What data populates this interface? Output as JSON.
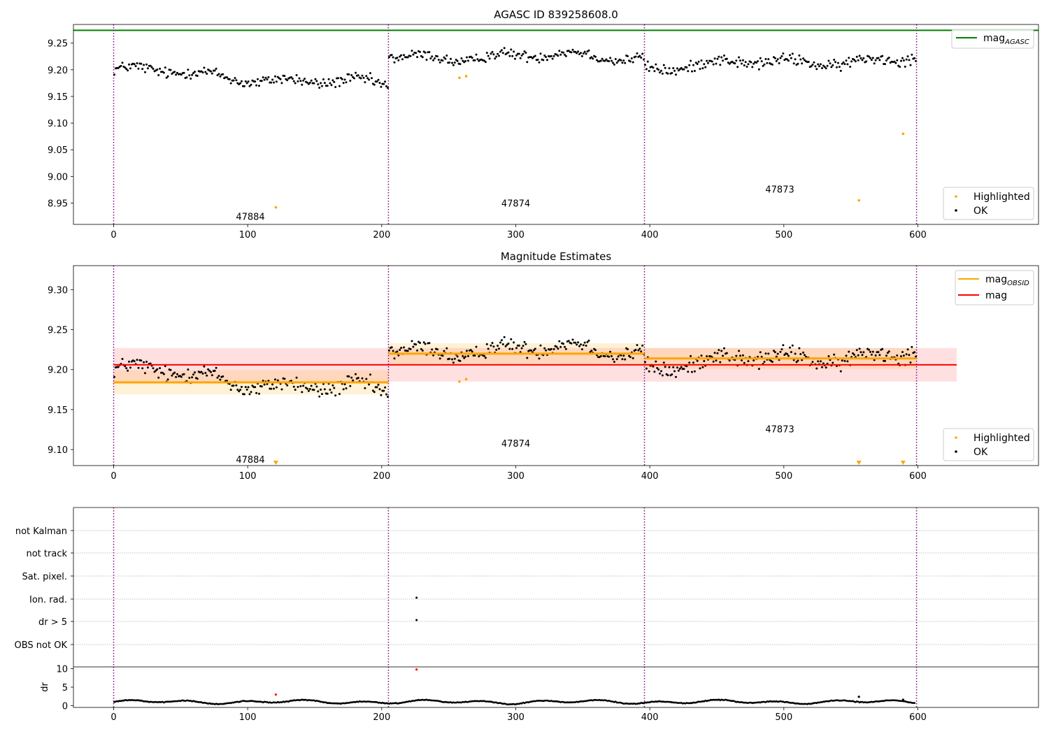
{
  "chart_data": [
    {
      "type": "scatter",
      "title": "AGASC ID 839258608.0",
      "xlim": [
        -30,
        690
      ],
      "ylim": [
        8.91,
        9.285
      ],
      "xticks": [
        0,
        100,
        200,
        300,
        400,
        500,
        600
      ],
      "yticks": [
        8.95,
        9.0,
        9.05,
        9.1,
        9.15,
        9.2,
        9.25
      ],
      "ytick_labels": [
        "8.95",
        "9.00",
        "9.05",
        "9.10",
        "9.15",
        "9.20",
        "9.25"
      ],
      "obsid_boundaries": [
        0,
        205,
        396,
        599
      ],
      "obsid_labels": [
        {
          "text": "47884",
          "x": 102,
          "y": 8.925
        },
        {
          "text": "47874",
          "x": 300,
          "y": 8.95
        },
        {
          "text": "47873",
          "x": 497,
          "y": 8.976
        }
      ],
      "mag_agasc": 9.274,
      "segments": [
        {
          "x0": 0,
          "x1": 205,
          "y0": 9.2,
          "y1": 9.17,
          "amp": 0.024
        },
        {
          "x0": 205,
          "x1": 396,
          "y0": 9.225,
          "y1": 9.225,
          "amp": 0.022
        },
        {
          "x0": 396,
          "x1": 599,
          "y0": 9.205,
          "y1": 9.222,
          "amp": 0.024
        }
      ],
      "highlighted": [
        {
          "x": 121,
          "y": 8.942
        },
        {
          "x": 258,
          "y": 9.185
        },
        {
          "x": 263,
          "y": 9.188
        },
        {
          "x": 556,
          "y": 8.955
        },
        {
          "x": 589,
          "y": 9.08
        }
      ],
      "legend_top": [
        {
          "name": "mag",
          "sub": "AGASC",
          "color": "#008000"
        }
      ],
      "legend_bottom": [
        {
          "name": "Highlighted",
          "color": "#ffa500"
        },
        {
          "name": "OK",
          "color": "#000000"
        }
      ]
    },
    {
      "type": "scatter",
      "title": "Magnitude Estimates",
      "xlim": [
        -30,
        690
      ],
      "ylim": [
        9.08,
        9.33
      ],
      "xticks": [
        0,
        100,
        200,
        300,
        400,
        500,
        600
      ],
      "yticks": [
        9.1,
        9.15,
        9.2,
        9.25,
        9.3
      ],
      "ytick_labels": [
        "9.10",
        "9.15",
        "9.20",
        "9.25",
        "9.30"
      ],
      "obsid_boundaries": [
        0,
        205,
        396,
        599
      ],
      "obsid_labels": [
        {
          "text": "47884",
          "x": 102,
          "y": 9.088
        },
        {
          "text": "47874",
          "x": 300,
          "y": 9.108
        },
        {
          "text": "47873",
          "x": 497,
          "y": 9.126
        }
      ],
      "mag": {
        "value": 9.206,
        "lo": 9.185,
        "hi": 9.227,
        "x0": 0,
        "x1": 629
      },
      "mag_obsid": [
        {
          "x0": 0,
          "x1": 205,
          "value": 9.184,
          "lo": 9.169,
          "hi": 9.199
        },
        {
          "x0": 205,
          "x1": 396,
          "value": 9.22,
          "lo": 9.207,
          "hi": 9.233
        },
        {
          "x0": 396,
          "x1": 599,
          "value": 9.214,
          "lo": 9.201,
          "hi": 9.227
        }
      ],
      "highlighted": [
        {
          "x": 258,
          "y": 9.185
        },
        {
          "x": 263,
          "y": 9.188
        }
      ],
      "out_of_range_markers": [
        121,
        556,
        589
      ],
      "legend_top": [
        {
          "name": "mag",
          "sub": "OBSID",
          "color": "#ffa500"
        },
        {
          "name": "mag",
          "sub": "",
          "color": "#ff0000"
        }
      ],
      "legend_bottom": [
        {
          "name": "Highlighted",
          "color": "#ffa500"
        },
        {
          "name": "OK",
          "color": "#000000"
        }
      ]
    },
    {
      "type": "scatter",
      "title": "",
      "xlim": [
        -30,
        690
      ],
      "xticks": [
        0,
        100,
        200,
        300,
        400,
        500,
        600
      ],
      "flag_rows": [
        "not Kalman",
        "not track",
        "Sat. pixel.",
        "Ion. rad.",
        "dr > 5",
        "OBS not OK"
      ],
      "flag_points": [
        {
          "row": "Ion. rad.",
          "x": 226
        },
        {
          "row": "dr > 5",
          "x": 226
        }
      ],
      "obsid_boundaries": [
        0,
        205,
        396,
        599
      ],
      "dr": {
        "ylabel": "dr",
        "ylim": [
          -0.5,
          10.5
        ],
        "yticks": [
          0,
          5,
          10
        ],
        "baseline": 1.0,
        "outliers": [
          {
            "x": 121,
            "y": 3.0,
            "color": "#ff0000"
          },
          {
            "x": 226,
            "y": 9.8,
            "color": "#ff0000"
          },
          {
            "x": 556,
            "y": 2.4,
            "color": "#000000"
          },
          {
            "x": 589,
            "y": 1.6,
            "color": "#000000"
          }
        ]
      }
    }
  ]
}
